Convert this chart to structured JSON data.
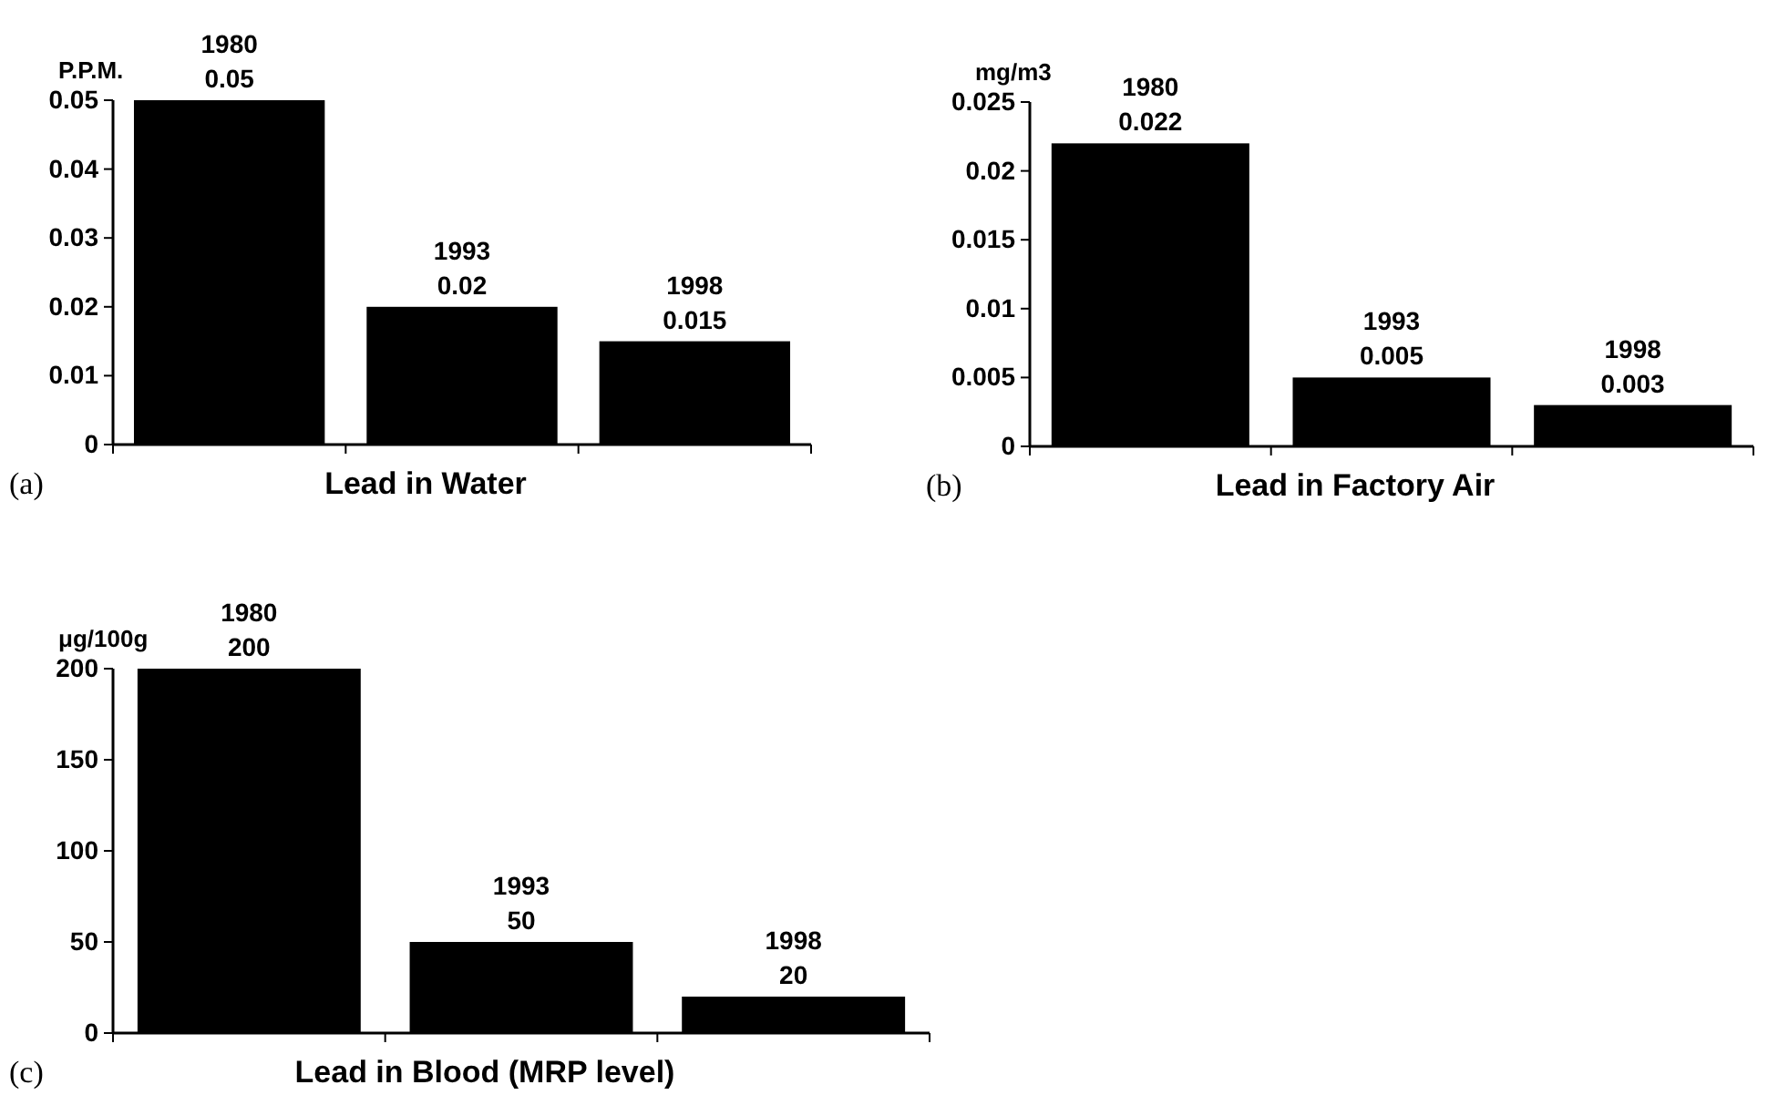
{
  "chart_data": [
    {
      "type": "bar",
      "title": "Lead in Water",
      "ylabel": "P.P.M.",
      "annotations": [
        "(a)"
      ],
      "categories": [
        "1980",
        "1993",
        "1998"
      ],
      "values": [
        0.05,
        0.02,
        0.015
      ],
      "color": "#000000",
      "ylim": [
        0,
        0.05
      ],
      "yticks": [
        0,
        0.01,
        0.02,
        0.03,
        0.04,
        0.05
      ],
      "data_labels": true,
      "grid": false
    },
    {
      "type": "bar",
      "title": "Lead in Factory Air",
      "ylabel": "mg/m3",
      "annotations": [
        "(b)"
      ],
      "categories": [
        "1980",
        "1993",
        "1998"
      ],
      "values": [
        0.022,
        0.005,
        0.003
      ],
      "color": "#000000",
      "ylim": [
        0,
        0.025
      ],
      "yticks": [
        0,
        0.005,
        0.01,
        0.015,
        0.02,
        0.025
      ],
      "data_labels": true,
      "grid": false
    },
    {
      "type": "bar",
      "title": "Lead in Blood (MRP level)",
      "ylabel": "μg/100g",
      "annotations": [
        "(c)"
      ],
      "categories": [
        "1980",
        "1993",
        "1998"
      ],
      "values": [
        200,
        50,
        20
      ],
      "color": "#000000",
      "ylim": [
        0,
        200
      ],
      "yticks": [
        0,
        50,
        100,
        150,
        200
      ],
      "data_labels": true,
      "grid": false
    }
  ]
}
